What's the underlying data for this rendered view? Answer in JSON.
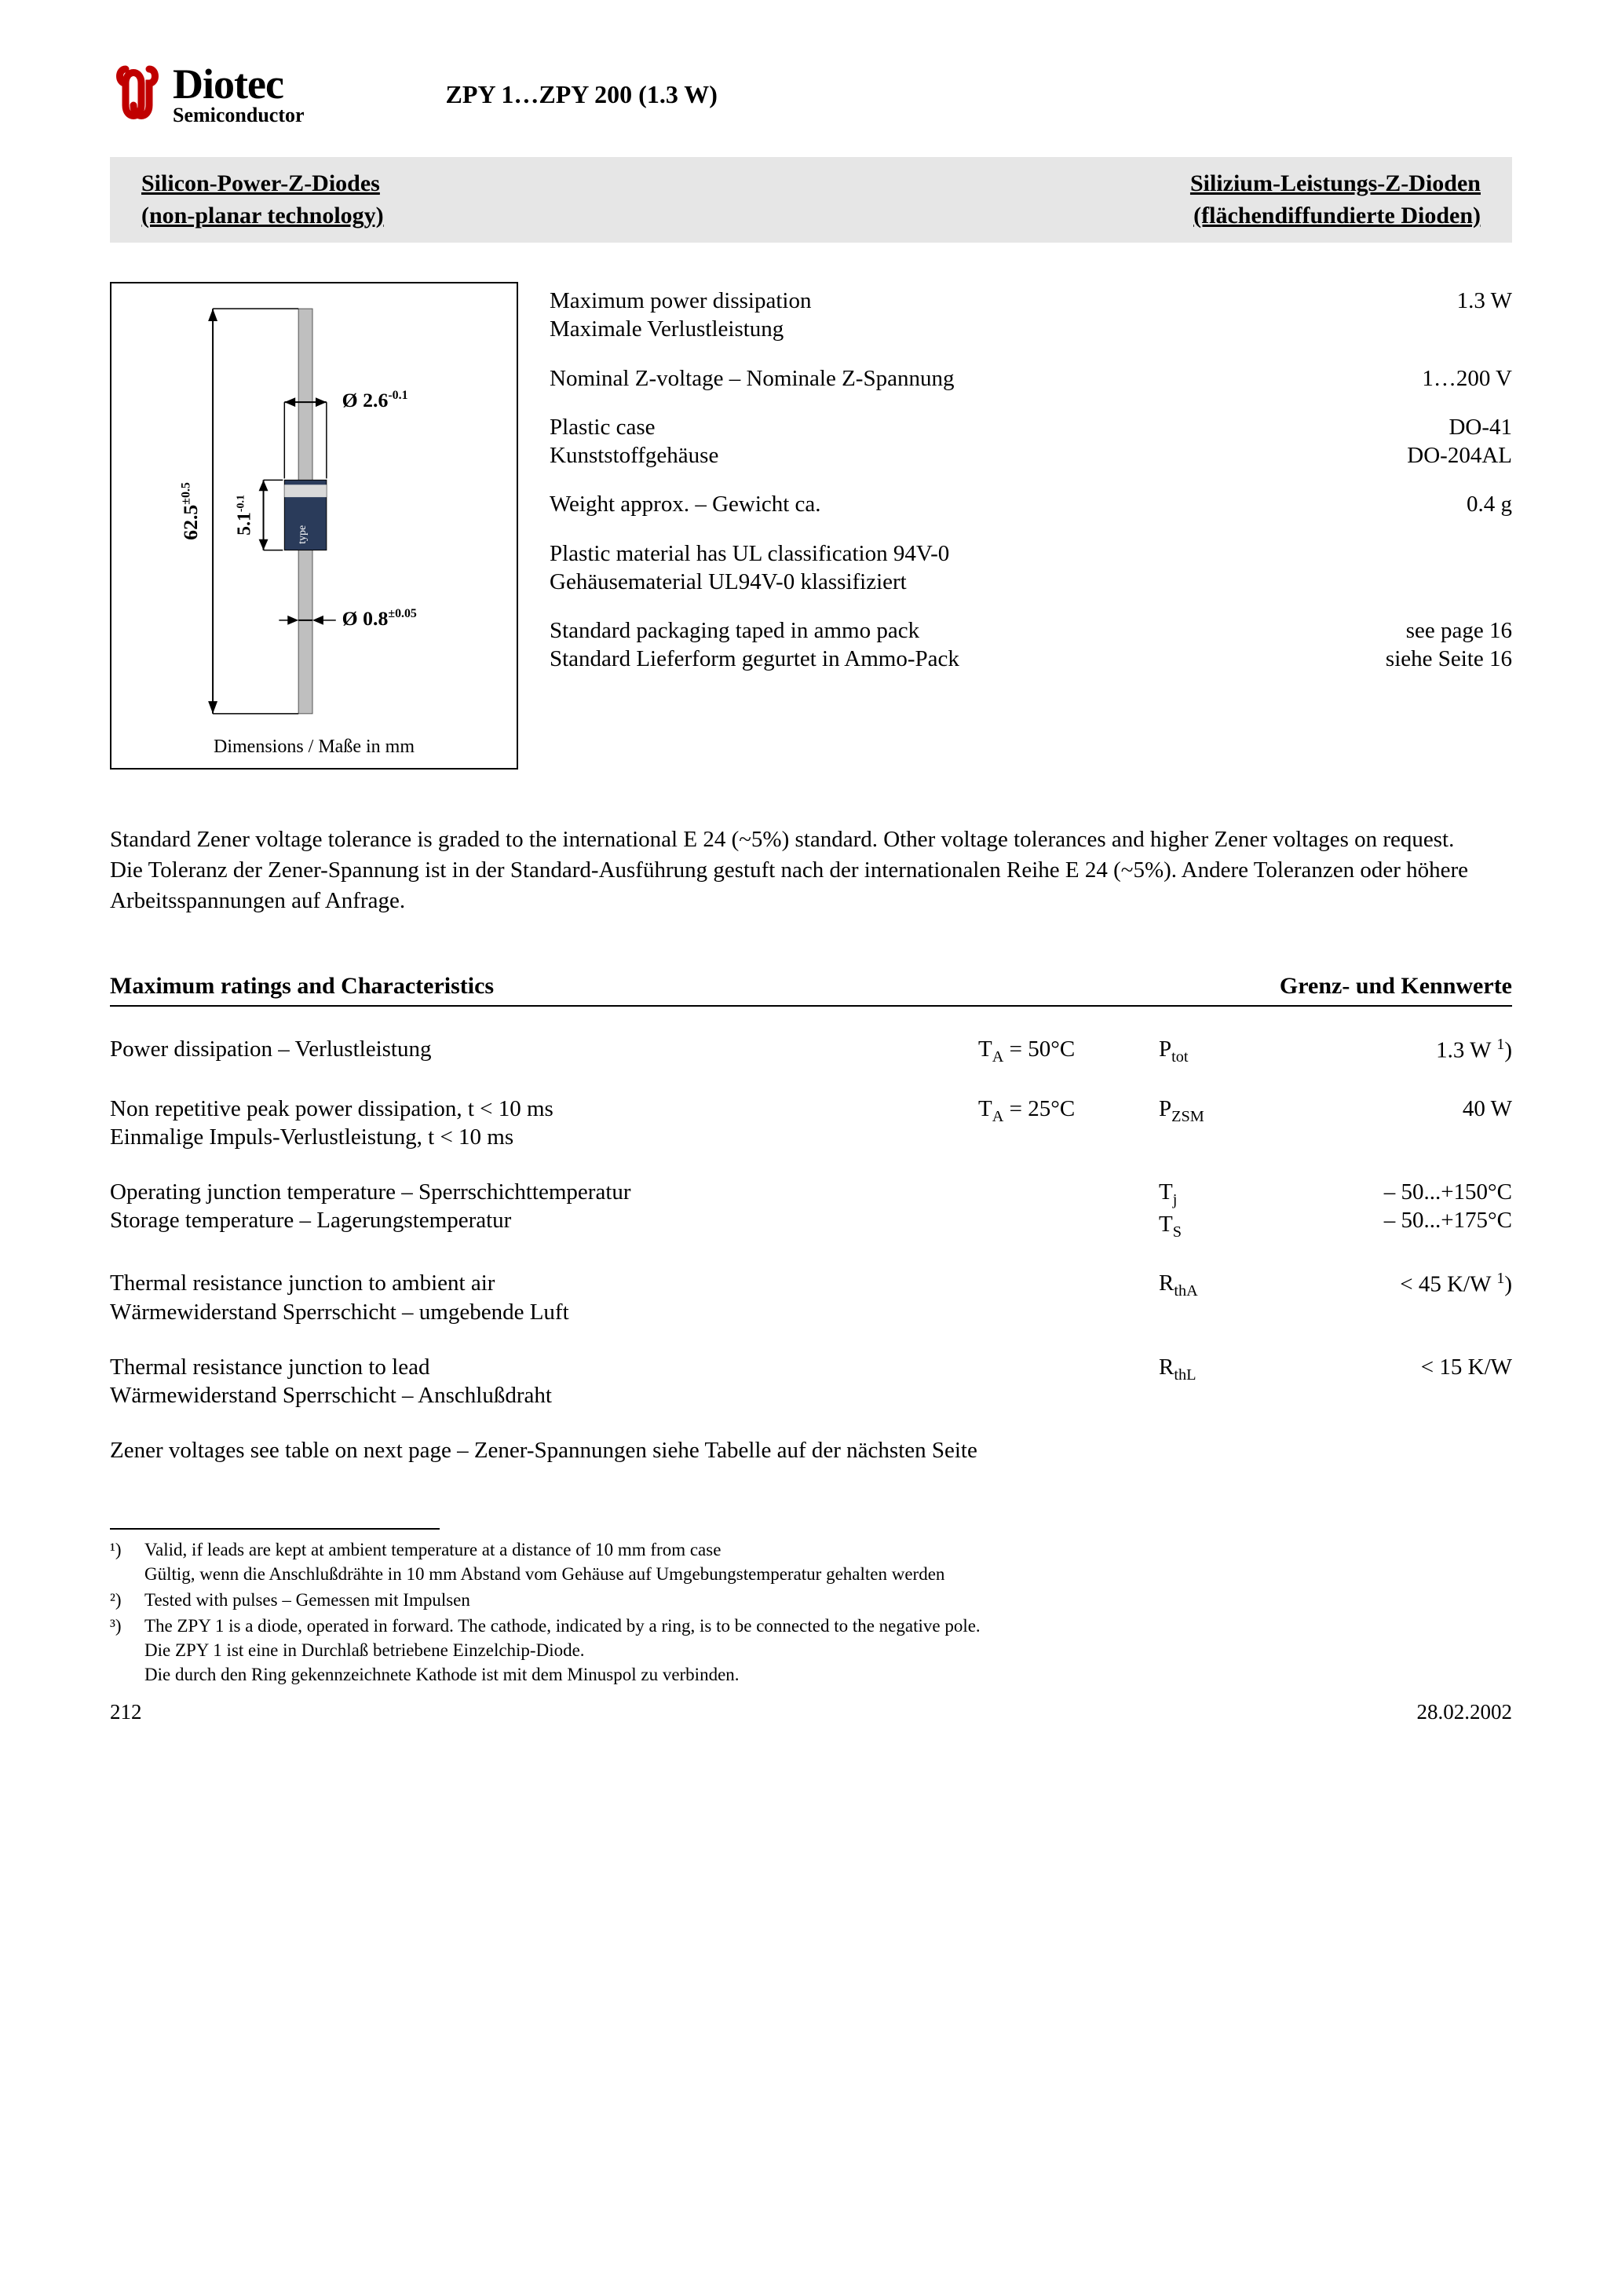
{
  "logo": {
    "brand": "Diotec",
    "sub": "Semiconductor",
    "color": "#c00000"
  },
  "doc_title": "ZPY 1…ZPY 200 (1.3 W)",
  "banner": {
    "left_1": "Silicon-Power-Z-Diodes",
    "left_2": "(non-planar technology)",
    "right_1": "Silizium-Leistungs-Z-Dioden",
    "right_2": "(flächendiffundierte Dioden)",
    "bg": "#e6e6e6"
  },
  "dim_diagram": {
    "length": "62.5",
    "length_tol": "±0.5",
    "body_len": "5.1",
    "body_tol": "-0.1",
    "body_dia": "Ø 2.6",
    "body_dia_tol": "-0.1",
    "wire_dia": "Ø 0.8",
    "wire_dia_tol": "±0.05",
    "marking": "type",
    "caption": "Dimensions / Maße in mm",
    "lead_color": "#bfbfbf",
    "body_color": "#2a3b5a"
  },
  "specs": [
    {
      "l1": "Maximum power dissipation",
      "l2": "Maximale Verlustleistung",
      "v": "1.3 W"
    },
    {
      "l1": "Nominal Z-voltage – Nominale Z-Spannung",
      "l2": "",
      "v": "1…200 V"
    },
    {
      "l1": "Plastic case",
      "l2": "Kunststoffgehäuse",
      "v": "DO-41\nDO-204AL"
    },
    {
      "l1": "Weight approx. – Gewicht ca.",
      "l2": "",
      "v": "0.4 g"
    },
    {
      "l1": "Plastic material has UL classification 94V-0",
      "l2": "Gehäusematerial UL94V-0 klassifiziert",
      "v": ""
    },
    {
      "l1": "Standard packaging taped in ammo pack",
      "l2": "Standard Lieferform gegurtet in Ammo-Pack",
      "v": "see page 16\nsiehe Seite 16"
    }
  ],
  "paragraph": "Standard Zener voltage tolerance is graded to the international E 24 (~5%) standard. Other voltage tolerances and higher Zener voltages on request.\nDie Toleranz der Zener-Spannung ist in der Standard-Ausführung gestuft nach der internationalen Reihe E 24 (~5%). Andere Toleranzen oder höhere Arbeitsspannungen auf Anfrage.",
  "ratings_header": {
    "left": "Maximum ratings and Characteristics",
    "right": "Grenz- und Kennwerte"
  },
  "ratings": [
    {
      "desc": "Power dissipation – Verlustleistung",
      "cond": "T_A = 50°C",
      "sym": "P_tot",
      "val": "1.3 W ¹)"
    },
    {
      "desc": "Non repetitive peak power dissipation, t < 10 ms\nEinmalige Impuls-Verlustleistung, t < 10 ms",
      "cond": "T_A = 25°C",
      "sym": "P_ZSM",
      "val": "40 W"
    },
    {
      "desc": "Operating junction temperature – Sperrschichttemperatur\nStorage temperature – Lagerungstemperatur",
      "cond": "",
      "sym": "T_j\nT_S",
      "val": "– 50...+150°C\n– 50...+175°C"
    },
    {
      "desc": "Thermal resistance junction to ambient air\nWärmewiderstand Sperrschicht – umgebende Luft",
      "cond": "",
      "sym": "R_thA",
      "val": "< 45 K/W ¹)"
    },
    {
      "desc": "Thermal resistance junction to lead\nWärmewiderstand Sperrschicht – Anschlußdraht",
      "cond": "",
      "sym": "R_thL",
      "val": "< 15 K/W"
    }
  ],
  "note_line": "Zener voltages see table on next page   –   Zener-Spannungen siehe Tabelle auf der nächsten Seite",
  "footnotes": [
    {
      "m": "¹)",
      "t": "Valid, if leads are kept at ambient temperature at a distance of 10 mm from case\nGültig, wenn die Anschlußdrähte in 10 mm Abstand vom Gehäuse auf Umgebungstemperatur gehalten werden"
    },
    {
      "m": "²)",
      "t": "Tested with pulses – Gemessen mit Impulsen"
    },
    {
      "m": "³)",
      "t": "The ZPY 1 is a diode, operated in forward. The cathode, indicated by a ring, is to be connected to the negative pole.\nDie ZPY 1 ist eine in Durchlaß betriebene Einzelchip-Diode.\nDie durch den Ring gekennzeichnete Kathode ist mit dem Minuspol zu verbinden."
    }
  ],
  "footer": {
    "page": "212",
    "date": "28.02.2002"
  }
}
